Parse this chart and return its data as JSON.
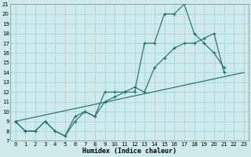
{
  "xlabel": "Humidex (Indice chaleur)",
  "ylabel": "",
  "bg_color": "#ceeaea",
  "grid_color": "#a8d4d4",
  "line_color": "#1a6e60",
  "xlim": [
    -0.5,
    23.5
  ],
  "ylim": [
    7,
    21
  ],
  "xticks": [
    0,
    1,
    2,
    3,
    4,
    5,
    6,
    7,
    8,
    9,
    10,
    11,
    12,
    13,
    14,
    15,
    16,
    17,
    18,
    19,
    20,
    21,
    22,
    23
  ],
  "yticks": [
    7,
    8,
    9,
    10,
    11,
    12,
    13,
    14,
    15,
    16,
    17,
    18,
    19,
    20,
    21
  ],
  "line1_x": [
    0,
    1,
    2,
    3,
    4,
    5,
    6,
    7,
    8,
    9,
    10,
    11,
    12,
    13,
    14,
    15,
    16,
    17,
    18,
    19,
    20,
    21
  ],
  "line1_y": [
    9,
    8,
    8,
    9,
    8,
    7.5,
    9,
    10,
    9.5,
    12,
    12,
    12,
    12,
    17,
    17,
    20,
    20,
    21,
    18,
    17,
    16,
    14.5
  ],
  "line2_x": [
    0,
    1,
    2,
    3,
    4,
    5,
    6,
    7,
    8,
    9,
    10,
    11,
    12,
    13,
    14,
    15,
    16,
    17,
    18,
    19,
    20,
    21
  ],
  "line2_y": [
    9,
    8,
    8,
    9,
    8,
    7.5,
    9.5,
    10,
    9.5,
    11,
    11.5,
    12,
    12.5,
    12,
    14.5,
    15.5,
    16.5,
    17,
    17,
    17.5,
    18,
    14
  ],
  "line3_x": [
    0,
    23
  ],
  "line3_y": [
    9,
    14
  ]
}
